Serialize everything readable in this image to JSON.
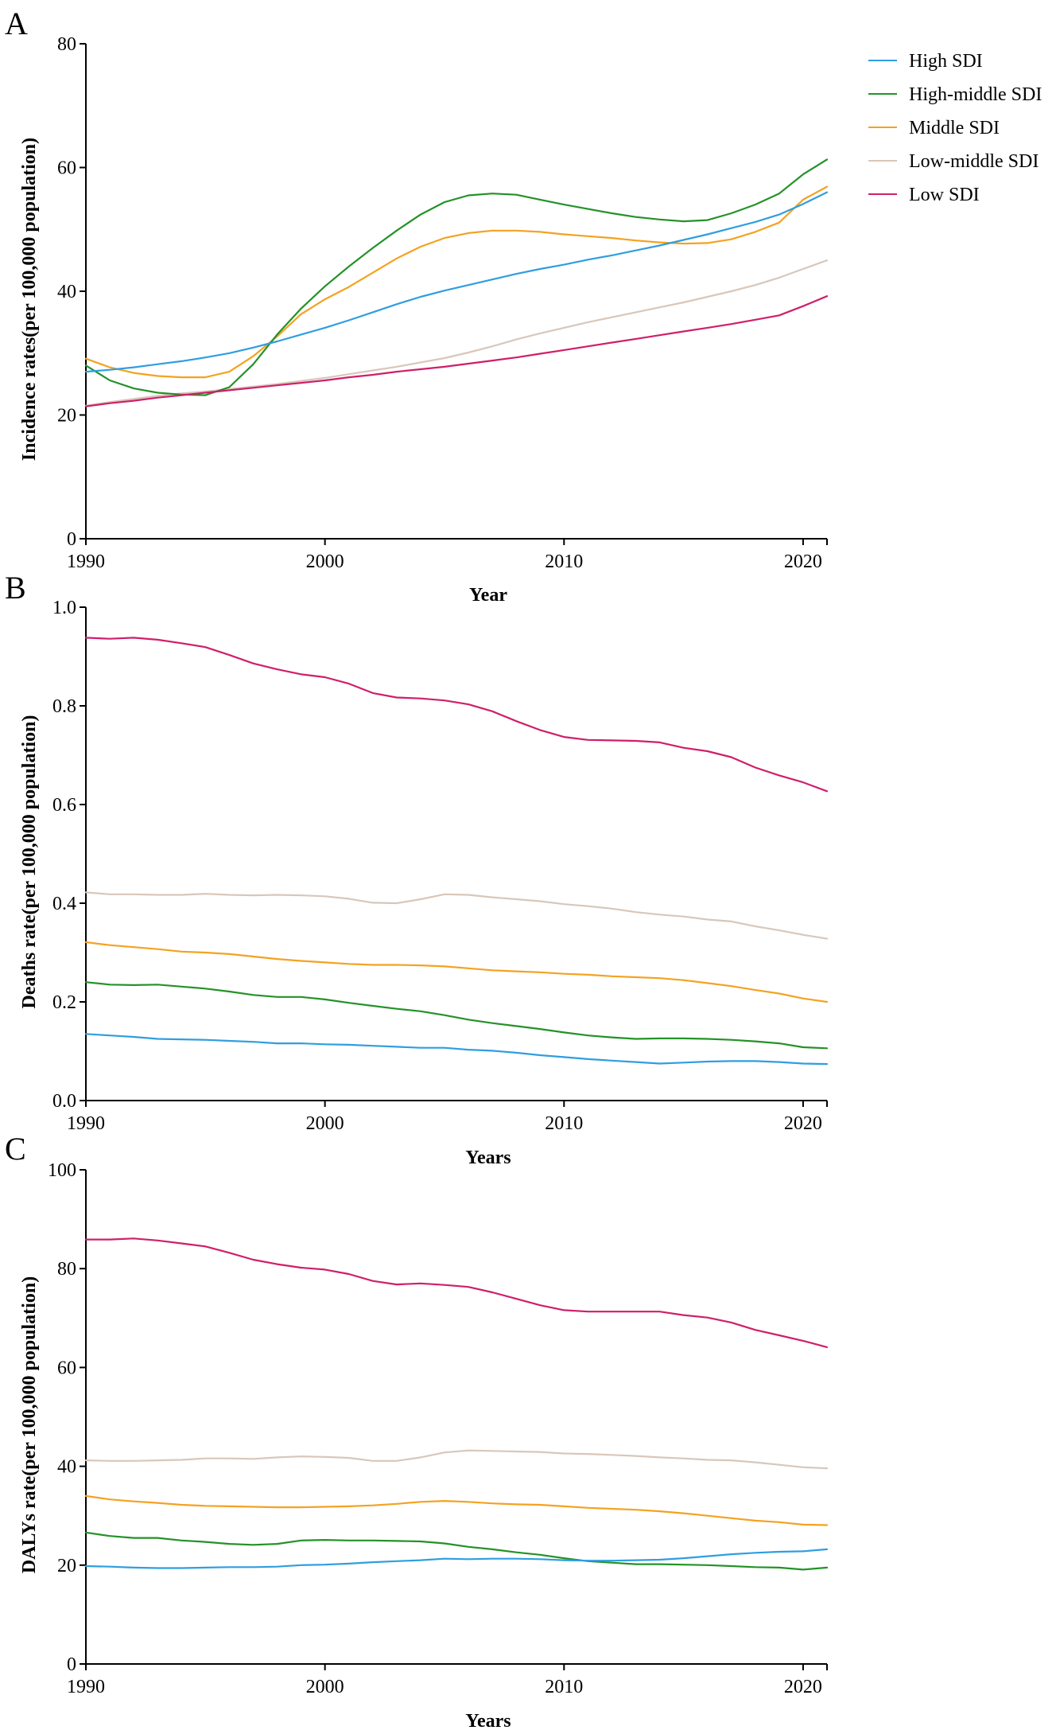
{
  "colors": {
    "High SDI": "#2f9ee0",
    "High-middle SDI": "#249228",
    "Middle SDI": "#f4a221",
    "Low-middle SDI": "#d8c7ba",
    "Low SDI": "#cf1f6a"
  },
  "chart_data": [
    {
      "panel": "A",
      "type": "line",
      "xlabel": "Year",
      "ylabel": "Incidence rates(per 100,000 population)",
      "xlim": [
        1990,
        2021
      ],
      "ylim": [
        0,
        80
      ],
      "xticks": [
        1990,
        2000,
        2010,
        2020
      ],
      "yticks": [
        0,
        20,
        40,
        60,
        80
      ],
      "legend": [
        "High SDI",
        "High-middle SDI",
        "Middle SDI",
        "Low-middle SDI",
        "Low SDI"
      ],
      "x": [
        1990,
        1991,
        1992,
        1993,
        1994,
        1995,
        1996,
        1997,
        1998,
        1999,
        2000,
        2001,
        2002,
        2003,
        2004,
        2005,
        2006,
        2007,
        2008,
        2009,
        2010,
        2011,
        2012,
        2013,
        2014,
        2015,
        2016,
        2017,
        2018,
        2019,
        2020,
        2021
      ],
      "series": [
        {
          "name": "High SDI",
          "values": [
            27.0,
            27.3,
            27.7,
            28.2,
            28.7,
            29.3,
            30.0,
            30.9,
            31.9,
            33.0,
            34.1,
            35.3,
            36.6,
            37.9,
            39.1,
            40.1,
            41.0,
            41.9,
            42.8,
            43.6,
            44.3,
            45.1,
            45.8,
            46.6,
            47.4,
            48.3,
            49.2,
            50.2,
            51.2,
            52.4,
            54.1,
            56.0
          ]
        },
        {
          "name": "High-middle SDI",
          "values": [
            28.0,
            25.6,
            24.3,
            23.6,
            23.3,
            23.2,
            24.5,
            28.2,
            33.0,
            37.2,
            40.8,
            44.0,
            47.0,
            49.8,
            52.4,
            54.4,
            55.5,
            55.8,
            55.6,
            54.8,
            54.0,
            53.3,
            52.6,
            52.0,
            51.6,
            51.3,
            51.5,
            52.6,
            54.0,
            55.8,
            58.9,
            61.3
          ]
        },
        {
          "name": "Middle SDI",
          "values": [
            29.1,
            27.7,
            26.8,
            26.3,
            26.1,
            26.1,
            27.0,
            29.5,
            32.7,
            36.3,
            38.7,
            40.7,
            43.0,
            45.3,
            47.2,
            48.6,
            49.4,
            49.8,
            49.8,
            49.6,
            49.2,
            48.9,
            48.6,
            48.2,
            47.9,
            47.7,
            47.8,
            48.4,
            49.6,
            51.1,
            54.8,
            56.9
          ]
        },
        {
          "name": "Low-middle SDI",
          "values": [
            21.5,
            22.1,
            22.6,
            23.1,
            23.5,
            23.8,
            24.2,
            24.6,
            25.0,
            25.5,
            26.0,
            26.6,
            27.2,
            27.8,
            28.5,
            29.2,
            30.1,
            31.1,
            32.2,
            33.2,
            34.1,
            35.0,
            35.8,
            36.6,
            37.4,
            38.2,
            39.1,
            40.0,
            41.0,
            42.2,
            43.6,
            45.0
          ]
        },
        {
          "name": "Low SDI",
          "values": [
            21.4,
            21.9,
            22.3,
            22.8,
            23.2,
            23.6,
            24.0,
            24.4,
            24.8,
            25.2,
            25.6,
            26.1,
            26.5,
            27.0,
            27.4,
            27.8,
            28.3,
            28.8,
            29.3,
            29.9,
            30.5,
            31.1,
            31.7,
            32.3,
            32.9,
            33.5,
            34.1,
            34.7,
            35.4,
            36.1,
            37.6,
            39.2
          ]
        }
      ]
    },
    {
      "panel": "B",
      "type": "line",
      "xlabel": "Years",
      "ylabel": "Deaths rate(per 100,000 population)",
      "xlim": [
        1990,
        2021
      ],
      "ylim": [
        0,
        1.0
      ],
      "xticks": [
        1990,
        2000,
        2010,
        2020
      ],
      "yticks": [
        0.0,
        0.2,
        0.4,
        0.6,
        0.8,
        1.0
      ],
      "x": [
        1990,
        1991,
        1992,
        1993,
        1994,
        1995,
        1996,
        1997,
        1998,
        1999,
        2000,
        2001,
        2002,
        2003,
        2004,
        2005,
        2006,
        2007,
        2008,
        2009,
        2010,
        2011,
        2012,
        2013,
        2014,
        2015,
        2016,
        2017,
        2018,
        2019,
        2020,
        2021
      ],
      "series": [
        {
          "name": "High SDI",
          "values": [
            0.135,
            0.132,
            0.129,
            0.125,
            0.124,
            0.123,
            0.121,
            0.119,
            0.116,
            0.116,
            0.114,
            0.113,
            0.111,
            0.109,
            0.107,
            0.107,
            0.103,
            0.101,
            0.097,
            0.092,
            0.088,
            0.084,
            0.081,
            0.078,
            0.075,
            0.077,
            0.079,
            0.08,
            0.08,
            0.078,
            0.075,
            0.074
          ]
        },
        {
          "name": "High-middle SDI",
          "values": [
            0.24,
            0.235,
            0.234,
            0.235,
            0.231,
            0.227,
            0.221,
            0.214,
            0.21,
            0.21,
            0.205,
            0.198,
            0.192,
            0.186,
            0.181,
            0.173,
            0.164,
            0.157,
            0.151,
            0.145,
            0.138,
            0.132,
            0.128,
            0.125,
            0.126,
            0.126,
            0.125,
            0.123,
            0.12,
            0.116,
            0.108,
            0.106
          ]
        },
        {
          "name": "Middle SDI",
          "values": [
            0.321,
            0.315,
            0.311,
            0.307,
            0.302,
            0.3,
            0.297,
            0.292,
            0.287,
            0.283,
            0.28,
            0.277,
            0.275,
            0.275,
            0.274,
            0.272,
            0.268,
            0.264,
            0.262,
            0.26,
            0.257,
            0.255,
            0.252,
            0.25,
            0.248,
            0.244,
            0.238,
            0.232,
            0.224,
            0.217,
            0.207,
            0.2
          ]
        },
        {
          "name": "Low-middle SDI",
          "values": [
            0.422,
            0.418,
            0.418,
            0.417,
            0.417,
            0.419,
            0.417,
            0.416,
            0.417,
            0.416,
            0.414,
            0.409,
            0.401,
            0.4,
            0.408,
            0.418,
            0.417,
            0.412,
            0.408,
            0.404,
            0.398,
            0.394,
            0.389,
            0.382,
            0.377,
            0.373,
            0.367,
            0.363,
            0.353,
            0.345,
            0.336,
            0.328
          ]
        },
        {
          "name": "Low SDI",
          "values": [
            0.938,
            0.936,
            0.938,
            0.934,
            0.927,
            0.919,
            0.903,
            0.886,
            0.874,
            0.864,
            0.858,
            0.845,
            0.826,
            0.817,
            0.815,
            0.811,
            0.803,
            0.789,
            0.769,
            0.751,
            0.737,
            0.731,
            0.73,
            0.729,
            0.726,
            0.715,
            0.708,
            0.696,
            0.675,
            0.659,
            0.645,
            0.627
          ]
        }
      ]
    },
    {
      "panel": "C",
      "type": "line",
      "xlabel": "Years",
      "ylabel": "DALYs rate(per 100,000 population)",
      "xlim": [
        1990,
        2021
      ],
      "ylim": [
        0,
        100
      ],
      "xticks": [
        1990,
        2000,
        2010,
        2020
      ],
      "yticks": [
        0,
        20,
        40,
        60,
        80,
        100
      ],
      "x": [
        1990,
        1991,
        1992,
        1993,
        1994,
        1995,
        1996,
        1997,
        1998,
        1999,
        2000,
        2001,
        2002,
        2003,
        2004,
        2005,
        2006,
        2007,
        2008,
        2009,
        2010,
        2011,
        2012,
        2013,
        2014,
        2015,
        2016,
        2017,
        2018,
        2019,
        2020,
        2021
      ],
      "series": [
        {
          "name": "High SDI",
          "values": [
            19.8,
            19.7,
            19.5,
            19.4,
            19.4,
            19.5,
            19.6,
            19.6,
            19.7,
            20.0,
            20.1,
            20.3,
            20.6,
            20.8,
            21.0,
            21.3,
            21.2,
            21.3,
            21.3,
            21.2,
            21.0,
            20.9,
            20.9,
            21.0,
            21.1,
            21.4,
            21.8,
            22.2,
            22.5,
            22.7,
            22.8,
            23.2
          ]
        },
        {
          "name": "High-middle SDI",
          "values": [
            26.6,
            25.9,
            25.5,
            25.5,
            25.0,
            24.7,
            24.3,
            24.1,
            24.3,
            25.0,
            25.1,
            25.0,
            25.0,
            24.9,
            24.8,
            24.4,
            23.7,
            23.2,
            22.6,
            22.1,
            21.4,
            20.8,
            20.5,
            20.2,
            20.2,
            20.1,
            20.0,
            19.8,
            19.6,
            19.5,
            19.1,
            19.5
          ]
        },
        {
          "name": "Middle SDI",
          "values": [
            34.0,
            33.3,
            32.9,
            32.6,
            32.2,
            32.0,
            31.9,
            31.8,
            31.7,
            31.7,
            31.8,
            31.9,
            32.1,
            32.4,
            32.8,
            33.0,
            32.8,
            32.5,
            32.3,
            32.2,
            31.9,
            31.6,
            31.4,
            31.2,
            30.9,
            30.5,
            30.0,
            29.5,
            29.0,
            28.7,
            28.2,
            28.1
          ]
        },
        {
          "name": "Low-middle SDI",
          "values": [
            41.2,
            41.1,
            41.1,
            41.2,
            41.3,
            41.6,
            41.6,
            41.5,
            41.8,
            42.0,
            41.9,
            41.7,
            41.1,
            41.1,
            41.8,
            42.8,
            43.2,
            43.1,
            43.0,
            42.9,
            42.6,
            42.5,
            42.3,
            42.1,
            41.8,
            41.6,
            41.3,
            41.2,
            40.8,
            40.3,
            39.8,
            39.6
          ]
        },
        {
          "name": "Low SDI",
          "values": [
            85.9,
            85.9,
            86.1,
            85.7,
            85.1,
            84.5,
            83.2,
            81.8,
            80.9,
            80.2,
            79.8,
            78.9,
            77.5,
            76.8,
            77.0,
            76.7,
            76.3,
            75.2,
            73.9,
            72.6,
            71.6,
            71.3,
            71.3,
            71.3,
            71.3,
            70.6,
            70.1,
            69.1,
            67.6,
            66.5,
            65.4,
            64.1
          ]
        }
      ]
    }
  ]
}
